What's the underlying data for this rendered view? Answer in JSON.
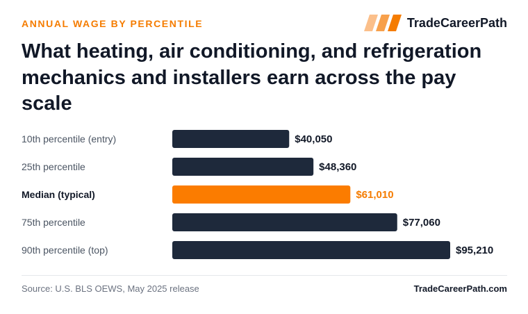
{
  "header": {
    "kicker": "ANNUAL WAGE BY PERCENTILE",
    "brand_name": "TradeCareerPath",
    "brand_logo_icon": "slanted-stripes-icon",
    "title": "What heating, air conditioning, and refrigeration mechanics and installers earn across the pay scale"
  },
  "colors": {
    "accent": "#f57c00",
    "bar": "#1e293b",
    "highlight_bar": "#fb7c00",
    "text_dark": "#111827",
    "text_muted": "#4b5563"
  },
  "chart_data": {
    "type": "bar",
    "orientation": "horizontal",
    "categories": [
      "10th percentile (entry)",
      "25th percentile",
      "Median (typical)",
      "75th percentile",
      "90th percentile (top)"
    ],
    "values": [
      40050,
      48360,
      61010,
      77060,
      95210
    ],
    "value_labels": [
      "$40,050",
      "$48,360",
      "$61,010",
      "$77,060",
      "$95,210"
    ],
    "highlight_index": 2,
    "xlim": [
      0,
      95210
    ],
    "grid": false,
    "legend": "none"
  },
  "footer": {
    "source": "Source: U.S. BLS OEWS, May 2025 release",
    "brand": "TradeCareerPath.com"
  }
}
